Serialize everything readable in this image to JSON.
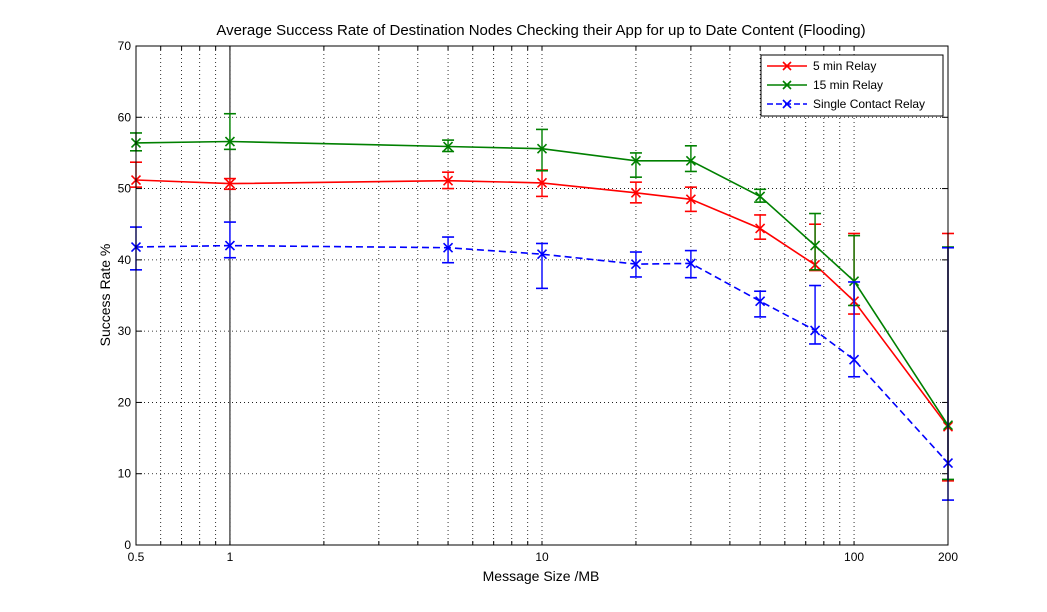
{
  "chart_data": {
    "type": "line",
    "title": "Average Success Rate of Destination Nodes Checking their App for up to Date Content (Flooding)",
    "xlabel": "Message Size /MB",
    "ylabel": "Success Rate %",
    "xscale": "log",
    "xlim": [
      0.5,
      200
    ],
    "ylim": [
      0,
      70
    ],
    "xticks": [
      0.5,
      1,
      10,
      100,
      200
    ],
    "xtick_labels": [
      "0.5",
      "1",
      "10",
      "100",
      "200"
    ],
    "yticks": [
      0,
      10,
      20,
      30,
      40,
      50,
      60,
      70
    ],
    "ytick_labels": [
      "0",
      "10",
      "20",
      "30",
      "40",
      "50",
      "60",
      "70"
    ],
    "grid": true,
    "legend_position": "top-right",
    "x": [
      0.5,
      1,
      5,
      10,
      20,
      30,
      50,
      75,
      100,
      200
    ],
    "series": [
      {
        "name": "5 min Relay",
        "color": "#ff0000",
        "line_style": "solid",
        "marker": "x",
        "values": [
          51.2,
          50.7,
          51.1,
          50.8,
          49.4,
          48.5,
          44.4,
          39.3,
          34.2,
          16.6
        ],
        "error_low": [
          50.2,
          49.9,
          50.0,
          48.9,
          48.0,
          46.8,
          42.9,
          38.5,
          32.4,
          9.0
        ],
        "error_high": [
          53.7,
          51.4,
          52.3,
          52.6,
          50.9,
          50.2,
          46.3,
          45.0,
          43.7,
          43.7
        ]
      },
      {
        "name": "15 min Relay",
        "color": "#008000",
        "line_style": "solid",
        "marker": "x",
        "values": [
          56.4,
          56.6,
          55.9,
          55.6,
          53.9,
          53.9,
          48.9,
          42.0,
          37.0,
          16.8
        ],
        "error_low": [
          55.3,
          55.5,
          55.2,
          52.5,
          51.6,
          52.4,
          48.1,
          38.6,
          33.6,
          9.2
        ],
        "error_high": [
          57.8,
          60.5,
          56.8,
          58.3,
          55.0,
          56.0,
          49.9,
          46.5,
          43.4,
          41.8
        ]
      },
      {
        "name": "Single Contact Relay",
        "color": "#0000ff",
        "line_style": "dashed",
        "marker": "x",
        "values": [
          41.8,
          42.0,
          41.7,
          40.8,
          39.4,
          39.5,
          34.2,
          30.1,
          26.0,
          11.5
        ],
        "error_low": [
          38.6,
          40.3,
          39.6,
          36.0,
          37.6,
          37.5,
          32.0,
          28.2,
          23.6,
          6.3
        ],
        "error_high": [
          44.6,
          45.3,
          43.2,
          42.3,
          41.1,
          41.3,
          35.6,
          36.4,
          36.9,
          41.7
        ]
      }
    ]
  }
}
